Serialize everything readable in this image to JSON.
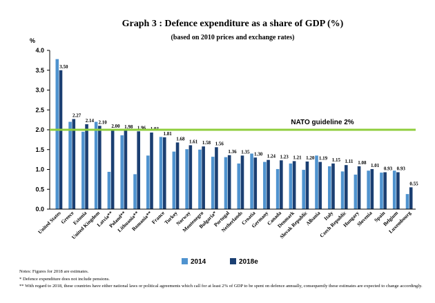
{
  "chart_data": {
    "type": "bar",
    "title": "Graph 3 : Defence expenditure as a share of GDP (%)",
    "subtitle": "(based on 2010 prices and exchange rates)",
    "ylabel": "%",
    "ylim": [
      0,
      4.0
    ],
    "yticks": [
      "0.0",
      "0.5",
      "1.0",
      "1.5",
      "2.0",
      "2.5",
      "3.0",
      "3.5",
      "4.0"
    ],
    "categories": [
      "United States",
      "Greece",
      "Estonia",
      "United Kingdom",
      "Latvia**",
      "Poland**",
      "Lithuania**",
      "Romania**",
      "France",
      "Turkey",
      "Norway",
      "Montenegro",
      "Bulgaria*",
      "Portugal",
      "Netherlands",
      "Croatia",
      "Germany",
      "Canada",
      "Denmark",
      "Slovak Republic",
      "Albania",
      "Italy",
      "Czech Republic",
      "Hungary",
      "Slovenia",
      "Spain",
      "Belgium",
      "Luxembourg"
    ],
    "series": [
      {
        "name": "2014",
        "color": "#4f93cf",
        "values": [
          3.78,
          2.2,
          1.95,
          2.2,
          0.94,
          1.86,
          0.88,
          1.35,
          1.82,
          1.45,
          1.51,
          1.5,
          1.32,
          1.31,
          1.15,
          1.4,
          1.19,
          1.01,
          1.15,
          0.99,
          1.35,
          1.08,
          0.95,
          0.87,
          0.97,
          0.92,
          0.97,
          0.38
        ]
      },
      {
        "name": "2018e",
        "color": "#1b3f72",
        "values": [
          3.5,
          2.27,
          2.14,
          2.1,
          2.0,
          1.98,
          1.96,
          1.93,
          1.81,
          1.68,
          1.61,
          1.58,
          1.56,
          1.36,
          1.35,
          1.3,
          1.24,
          1.23,
          1.21,
          1.2,
          1.19,
          1.15,
          1.11,
          1.08,
          1.01,
          0.93,
          0.93,
          0.55
        ]
      }
    ],
    "data_labels": [
      "3.50",
      "2.27",
      "2.14",
      "2.10",
      "2.00",
      "1.98",
      "1.96",
      "1.93",
      "1.81",
      "1.68",
      "1.61",
      "1.58",
      "1.56",
      "1.36",
      "1.35",
      "1.30",
      "1.24",
      "1.23",
      "1.21",
      "1.20",
      "1.19",
      "1.15",
      "1.11",
      "1.08",
      "1.01",
      "0.93",
      "0.93",
      "0.55"
    ],
    "reference_line": {
      "value": 2.0,
      "label": "NATO guideline 2%",
      "color": "#8fce3d"
    },
    "grid": false,
    "legend": "bottom"
  },
  "notes": [
    "Notes: Figures for 2018 are estimates.",
    "*   Defence expenditure does not include pensions.",
    "**  With regard to 2018, these countries have either national laws or political agreements which call for at least 2% of GDP to be spent on defence annually, consequently these estimates are expected to change accordingly."
  ]
}
